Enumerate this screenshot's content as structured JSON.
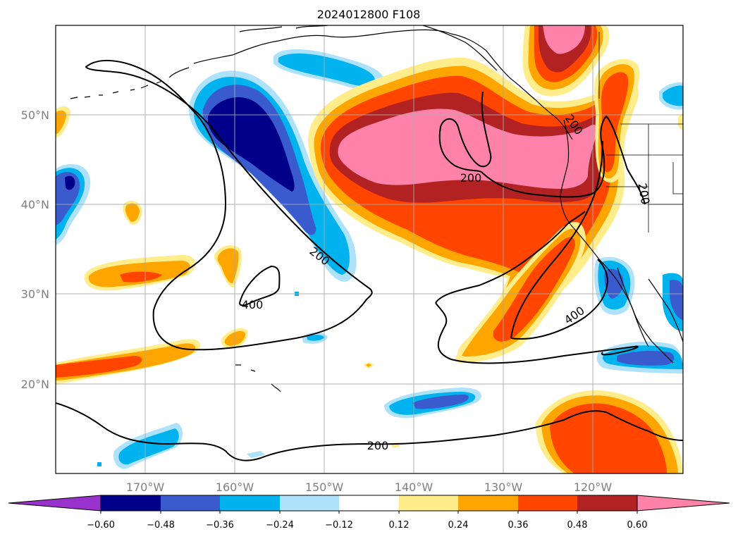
{
  "title": "2024012800 F108",
  "map": {
    "lat_labels": [
      "50°N",
      "40°N",
      "30°N",
      "20°N"
    ],
    "lon_labels": [
      "170°W",
      "160°W",
      "150°W",
      "140°W",
      "130°W",
      "120°W"
    ],
    "contour_labels": [
      "200",
      "400",
      "200",
      "200",
      "400",
      "200",
      "200"
    ]
  },
  "colorbar": {
    "ticks": [
      "−0.60",
      "−0.48",
      "−0.36",
      "−0.24",
      "−0.12",
      "0.12",
      "0.24",
      "0.36",
      "0.48",
      "0.60"
    ],
    "colors": [
      "#9932cc",
      "#00008b",
      "#3a5bcd",
      "#00b2ee",
      "#aee2fa",
      "#ffffff",
      "#ffec8b",
      "#ffa500",
      "#ff4500",
      "#b22222",
      "#ff82ab"
    ]
  },
  "colors": {
    "dark_blue": "#00008b",
    "mid_blue": "#3a5bcd",
    "sky_blue": "#00b2ee",
    "light_blue": "#aee2fa",
    "pale_yellow": "#ffec8b",
    "orange": "#ffa500",
    "red_orange": "#ff4500",
    "firebrick": "#b22222",
    "pink": "#ff82ab"
  }
}
